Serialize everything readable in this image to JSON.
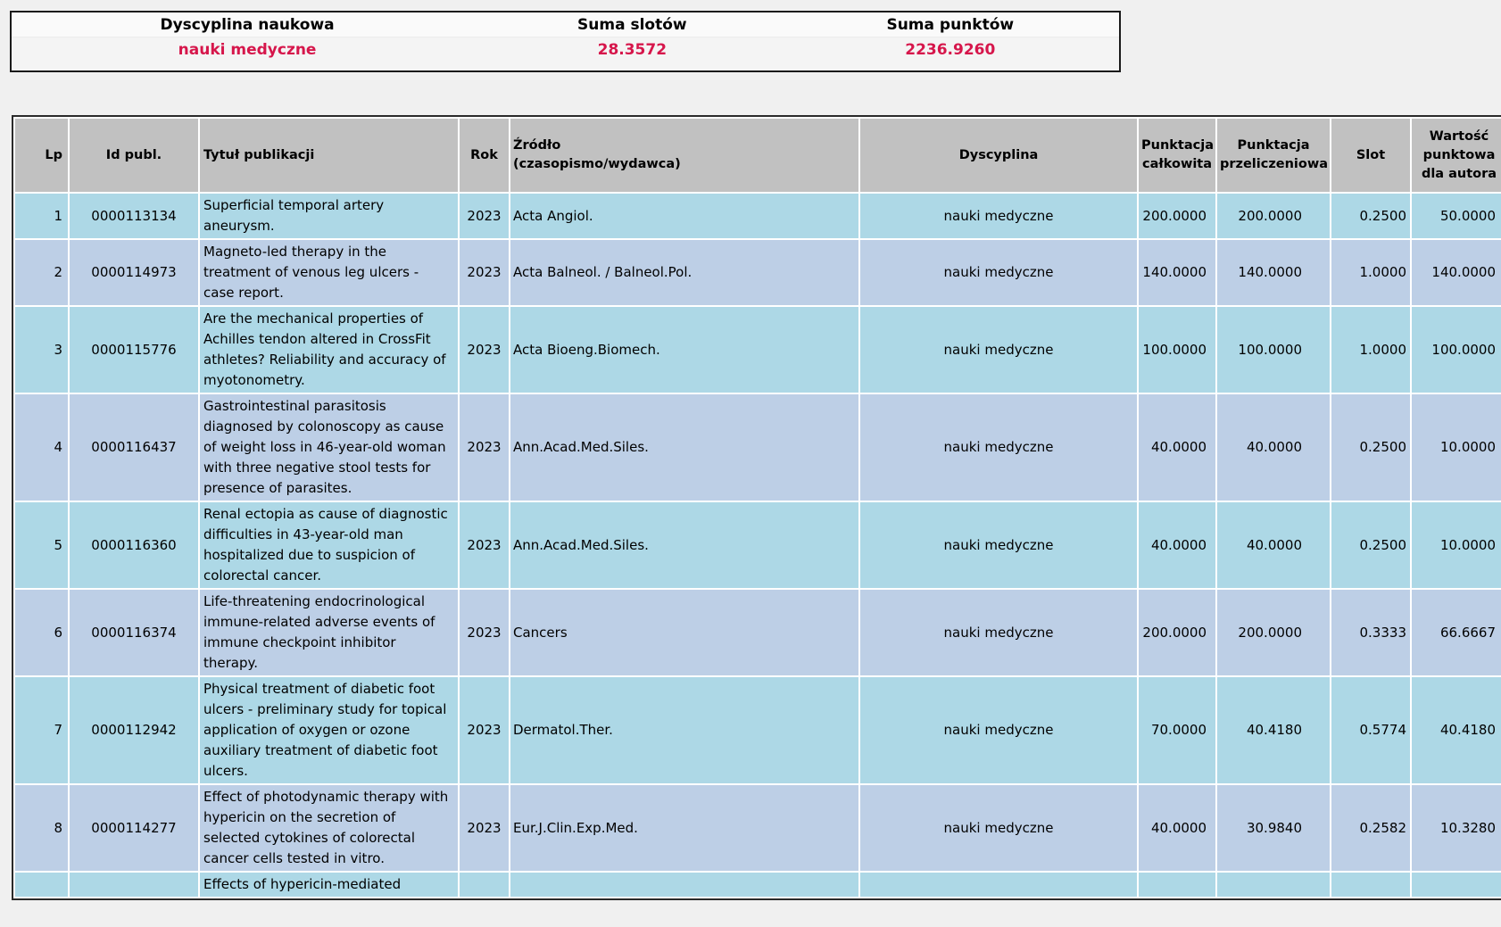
{
  "summary": {
    "columns": [
      {
        "header": "Dyscyplina naukowa",
        "value": "nauki medyczne"
      },
      {
        "header": "Suma slotów",
        "value": "28.3572"
      },
      {
        "header": "Suma punktów",
        "value": "2236.9260"
      }
    ]
  },
  "publications": {
    "columns": [
      {
        "key": "lp",
        "label": "Lp"
      },
      {
        "key": "id",
        "label": "Id publ."
      },
      {
        "key": "title",
        "label": "Tytuł publikacji"
      },
      {
        "key": "year",
        "label": "Rok"
      },
      {
        "key": "source",
        "label": "Źródło",
        "label2": "(czasopismo/wydawca)"
      },
      {
        "key": "discipline",
        "label": "Dyscyplina"
      },
      {
        "key": "pts_total",
        "label": "Punktacja całkowita"
      },
      {
        "key": "pts_conv",
        "label": "Punktacja przeliczeniowa"
      },
      {
        "key": "slot",
        "label": "Slot"
      },
      {
        "key": "pts_author",
        "label": "Wartość punktowa dla autora"
      }
    ],
    "rows": [
      {
        "lp": "1",
        "id": "0000113134",
        "title": "Superficial temporal artery aneurysm.",
        "year": "2023",
        "source": "Acta Angiol.",
        "discipline": "nauki medyczne",
        "pts_total": "200.0000",
        "pts_conv": "200.0000",
        "slot": "0.2500",
        "pts_author": "50.0000"
      },
      {
        "lp": "2",
        "id": "0000114973",
        "title": "Magneto-led therapy in the treatment of venous leg ulcers - case report.",
        "year": "2023",
        "source": "Acta Balneol. / Balneol.Pol.",
        "discipline": "nauki medyczne",
        "pts_total": "140.0000",
        "pts_conv": "140.0000",
        "slot": "1.0000",
        "pts_author": "140.0000"
      },
      {
        "lp": "3",
        "id": "0000115776",
        "title": "Are the mechanical properties of Achilles tendon altered in CrossFit athletes? Reliability and accuracy of myotonometry.",
        "year": "2023",
        "source": "Acta Bioeng.Biomech.",
        "discipline": "nauki medyczne",
        "pts_total": "100.0000",
        "pts_conv": "100.0000",
        "slot": "1.0000",
        "pts_author": "100.0000"
      },
      {
        "lp": "4",
        "id": "0000116437",
        "title": "Gastrointestinal parasitosis diagnosed by colonoscopy as cause of weight loss in 46-year-old woman with three negative stool tests for presence of parasites.",
        "year": "2023",
        "source": "Ann.Acad.Med.Siles.",
        "discipline": "nauki medyczne",
        "pts_total": "40.0000",
        "pts_conv": "40.0000",
        "slot": "0.2500",
        "pts_author": "10.0000"
      },
      {
        "lp": "5",
        "id": "0000116360",
        "title": "Renal ectopia as cause of diagnostic difficulties in 43-year-old man hospitalized due to suspicion of colorectal cancer.",
        "year": "2023",
        "source": "Ann.Acad.Med.Siles.",
        "discipline": "nauki medyczne",
        "pts_total": "40.0000",
        "pts_conv": "40.0000",
        "slot": "0.2500",
        "pts_author": "10.0000"
      },
      {
        "lp": "6",
        "id": "0000116374",
        "title": "Life-threatening endocrinological immune-related adverse events of immune checkpoint inhibitor therapy.",
        "year": "2023",
        "source": "Cancers",
        "discipline": "nauki medyczne",
        "pts_total": "200.0000",
        "pts_conv": "200.0000",
        "slot": "0.3333",
        "pts_author": "66.6667"
      },
      {
        "lp": "7",
        "id": "0000112942",
        "title": "Physical treatment of diabetic foot ulcers - preliminary study for topical application of oxygen or ozone auxiliary treatment of diabetic foot ulcers.",
        "year": "2023",
        "source": "Dermatol.Ther.",
        "discipline": "nauki medyczne",
        "pts_total": "70.0000",
        "pts_conv": "40.4180",
        "slot": "0.5774",
        "pts_author": "40.4180"
      },
      {
        "lp": "8",
        "id": "0000114277",
        "title": "Effect of photodynamic therapy with hypericin on the secretion of selected cytokines of colorectal cancer cells tested in vitro.",
        "year": "2023",
        "source": "Eur.J.Clin.Exp.Med.",
        "discipline": "nauki medyczne",
        "pts_total": "40.0000",
        "pts_conv": "30.9840",
        "slot": "0.2582",
        "pts_author": "10.3280"
      },
      {
        "lp": "",
        "id": "",
        "title": "Effects of hypericin-mediated",
        "year": "",
        "source": "",
        "discipline": "",
        "pts_total": "",
        "pts_conv": "",
        "slot": "",
        "pts_author": ""
      }
    ]
  },
  "colors": {
    "page_bg": "#f0f0f0",
    "accent_red": "#d6164b",
    "header_gray": "#c1c1c1",
    "row_odd": "#add8e6",
    "row_even": "#bdcfe6",
    "table_border": "#2a2a2a"
  }
}
